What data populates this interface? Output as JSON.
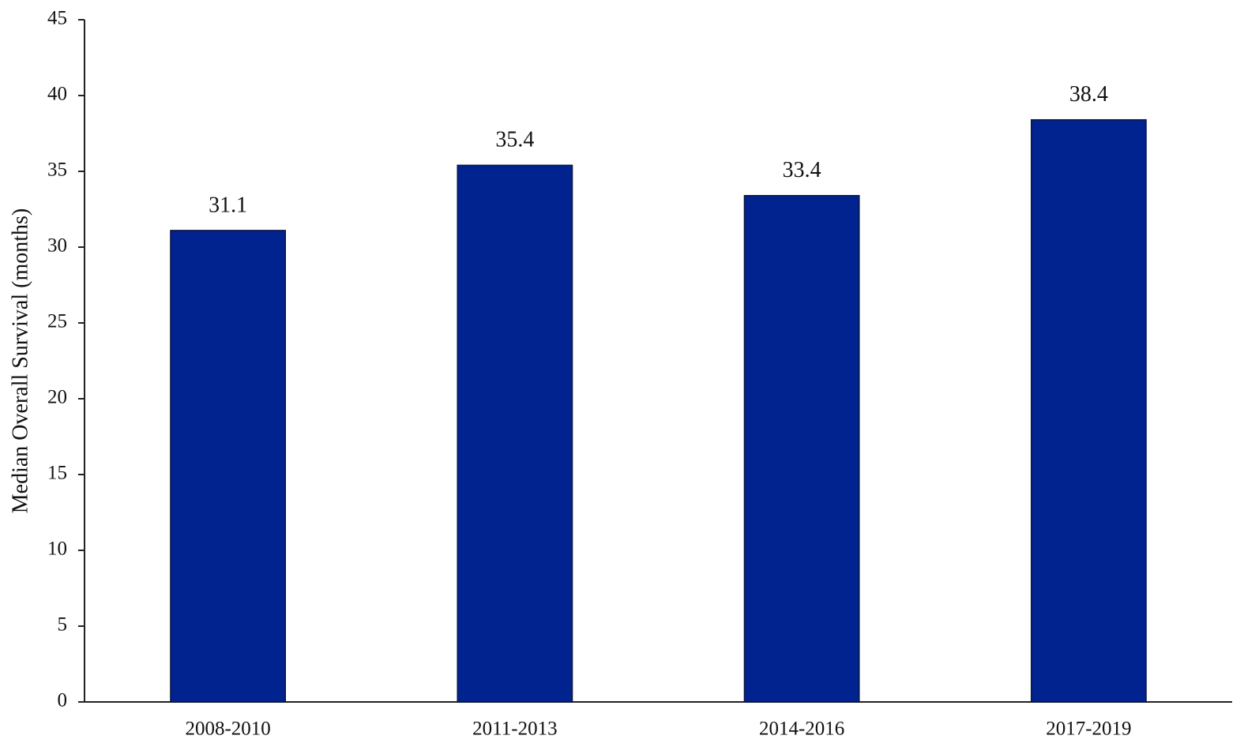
{
  "chart_data": {
    "type": "bar",
    "y_label": "Median Overall Survival (months)",
    "categories": [
      "2008-2010",
      "2011-2013",
      "2014-2016",
      "2017-2019"
    ],
    "values": [
      31.1,
      35.4,
      33.4,
      38.4
    ],
    "color": "#00238f",
    "ylim": [
      0,
      45
    ],
    "yticks": [
      0,
      5,
      10,
      15,
      20,
      25,
      30,
      35,
      40,
      45
    ],
    "grid": false
  }
}
